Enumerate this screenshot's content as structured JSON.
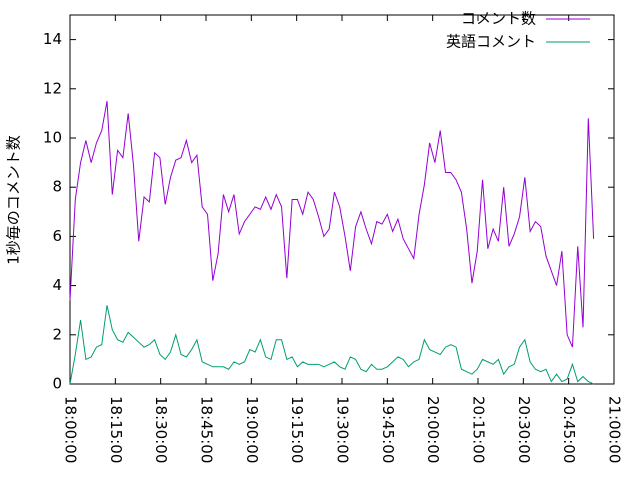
{
  "chart_data": {
    "type": "line",
    "ylabel": "1秒毎のコメント数",
    "x": [
      "18:00:00",
      "18:01:45",
      "18:03:30",
      "18:05:15",
      "18:07:00",
      "18:08:45",
      "18:10:30",
      "18:12:15",
      "18:14:00",
      "18:15:45",
      "18:17:30",
      "18:19:15",
      "18:21:00",
      "18:22:45",
      "18:24:30",
      "18:26:15",
      "18:28:00",
      "18:29:45",
      "18:31:30",
      "18:33:15",
      "18:35:00",
      "18:36:45",
      "18:38:30",
      "18:40:15",
      "18:42:00",
      "18:43:45",
      "18:45:30",
      "18:47:15",
      "18:49:00",
      "18:50:45",
      "18:52:30",
      "18:54:15",
      "18:56:00",
      "18:57:45",
      "18:59:30",
      "19:01:15",
      "19:03:00",
      "19:04:45",
      "19:06:30",
      "19:08:15",
      "19:10:00",
      "19:11:45",
      "19:13:30",
      "19:15:15",
      "19:17:00",
      "19:18:45",
      "19:20:30",
      "19:22:15",
      "19:24:00",
      "19:25:45",
      "19:27:30",
      "19:29:15",
      "19:31:00",
      "19:32:45",
      "19:34:30",
      "19:36:15",
      "19:38:00",
      "19:39:45",
      "19:41:30",
      "19:43:15",
      "19:45:00",
      "19:46:45",
      "19:48:30",
      "19:50:15",
      "19:52:00",
      "19:53:45",
      "19:55:30",
      "19:57:15",
      "19:59:00",
      "20:00:45",
      "20:02:30",
      "20:04:15",
      "20:06:00",
      "20:07:45",
      "20:09:30",
      "20:11:15",
      "20:13:00",
      "20:14:45",
      "20:16:30",
      "20:18:15",
      "20:20:00",
      "20:21:45",
      "20:23:30",
      "20:25:15",
      "20:27:00",
      "20:28:45",
      "20:30:30",
      "20:32:15",
      "20:34:00",
      "20:35:45",
      "20:37:30",
      "20:39:15",
      "20:41:00",
      "20:42:45",
      "20:44:30",
      "20:46:15",
      "20:48:00",
      "20:49:45",
      "20:51:30",
      "20:53:15"
    ],
    "series": [
      {
        "name": "コメント数",
        "color": "#9400d3",
        "values": [
          3.4,
          7.5,
          9.0,
          9.9,
          9.0,
          9.8,
          10.3,
          11.5,
          7.7,
          9.5,
          9.2,
          11.0,
          8.9,
          5.8,
          7.6,
          7.4,
          9.4,
          9.2,
          7.3,
          8.4,
          9.1,
          9.2,
          9.9,
          9.0,
          9.3,
          7.2,
          6.9,
          4.2,
          5.3,
          7.7,
          7.0,
          7.7,
          6.1,
          6.6,
          6.9,
          7.2,
          7.1,
          7.6,
          7.1,
          7.7,
          7.2,
          4.3,
          7.5,
          7.5,
          6.9,
          7.8,
          7.5,
          6.8,
          6.0,
          6.3,
          7.8,
          7.2,
          6.0,
          4.6,
          6.4,
          7.0,
          6.3,
          5.7,
          6.6,
          6.5,
          6.9,
          6.2,
          6.7,
          5.9,
          5.5,
          5.1,
          6.9,
          8.1,
          9.8,
          9.0,
          10.3,
          8.6,
          8.6,
          8.3,
          7.8,
          6.3,
          4.1,
          5.4,
          8.3,
          5.5,
          6.3,
          5.8,
          8.0,
          5.6,
          6.1,
          6.8,
          8.4,
          6.2,
          6.6,
          6.4,
          5.2,
          4.6,
          4.0,
          5.4,
          2.0,
          1.5,
          5.6,
          2.3,
          10.8,
          5.9
        ]
      },
      {
        "name": "英語コメント",
        "color": "#009e73",
        "values": [
          0.0,
          1.2,
          2.6,
          1.0,
          1.1,
          1.5,
          1.6,
          3.2,
          2.2,
          1.8,
          1.7,
          2.1,
          1.9,
          1.7,
          1.5,
          1.6,
          1.8,
          1.2,
          1.0,
          1.3,
          2.0,
          1.2,
          1.1,
          1.4,
          1.8,
          0.9,
          0.8,
          0.7,
          0.7,
          0.7,
          0.6,
          0.9,
          0.8,
          0.9,
          1.4,
          1.3,
          1.8,
          1.1,
          1.0,
          1.8,
          1.8,
          1.0,
          1.1,
          0.7,
          0.9,
          0.8,
          0.8,
          0.8,
          0.7,
          0.8,
          0.9,
          0.7,
          0.6,
          1.1,
          1.0,
          0.6,
          0.5,
          0.8,
          0.6,
          0.6,
          0.7,
          0.9,
          1.1,
          1.0,
          0.7,
          0.9,
          1.0,
          1.8,
          1.4,
          1.3,
          1.2,
          1.5,
          1.6,
          1.5,
          0.6,
          0.5,
          0.4,
          0.6,
          1.0,
          0.9,
          0.8,
          1.0,
          0.4,
          0.7,
          0.8,
          1.5,
          1.8,
          0.9,
          0.6,
          0.5,
          0.6,
          0.1,
          0.4,
          0.1,
          0.2,
          0.8,
          0.1,
          0.3,
          0.1,
          0.0
        ]
      }
    ],
    "xlim": [
      "18:00:00",
      "21:00:00"
    ],
    "xticks": [
      "18:00:00",
      "18:15:00",
      "18:30:00",
      "18:45:00",
      "19:00:00",
      "19:15:00",
      "19:30:00",
      "19:45:00",
      "20:00:00",
      "20:15:00",
      "20:30:00",
      "20:45:00",
      "21:00:00"
    ],
    "ylim": [
      0,
      15
    ],
    "yticks": [
      0,
      2,
      4,
      6,
      8,
      10,
      12,
      14
    ],
    "grid": false,
    "legend": "top-right"
  }
}
